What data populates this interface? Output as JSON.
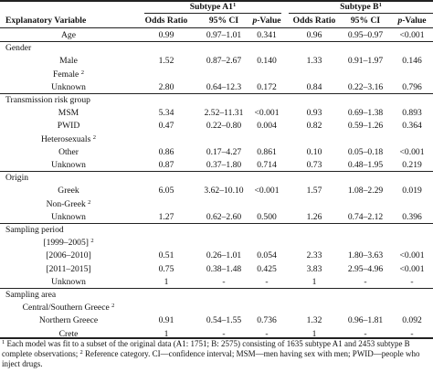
{
  "groups": {
    "a1": "Subtype A1",
    "a1_sup": "1",
    "b": "Subtype B",
    "b_sup": "1"
  },
  "columns": {
    "variable": "Explanatory Variable",
    "or_a1": "Odds Ratio",
    "ci_a1": "95% CI",
    "p_a1_italic": "p",
    "p_a1_rest": "-Value",
    "or_b": "Odds Ratio",
    "ci_b": "95% CI",
    "p_b_italic": "p",
    "p_b_rest": "-Value"
  },
  "rows": [
    {
      "label": "Age",
      "a1_or": "0.99",
      "a1_ci": "0.97–1.01",
      "a1_p": "0.341",
      "b_or": "0.96",
      "b_ci": "0.95–0.97",
      "b_p": "<0.001"
    },
    {
      "section": "Gender"
    },
    {
      "label": "Male",
      "a1_or": "1.52",
      "a1_ci": "0.87–2.67",
      "a1_p": "0.140",
      "b_or": "1.33",
      "b_ci": "0.91–1.97",
      "b_p": "0.146"
    },
    {
      "label": "Female",
      "sup": "2"
    },
    {
      "label": "Unknown",
      "a1_or": "2.80",
      "a1_ci": "0.64–12.3",
      "a1_p": "0.172",
      "b_or": "0.84",
      "b_ci": "0.22–3.16",
      "b_p": "0.796"
    },
    {
      "section": "Transmission risk group"
    },
    {
      "label": "MSM",
      "a1_or": "5.34",
      "a1_ci": "2.52–11.31",
      "a1_p": "<0.001",
      "b_or": "0.93",
      "b_ci": "0.69–1.38",
      "b_p": "0.893"
    },
    {
      "label": "PWID",
      "a1_or": "0.47",
      "a1_ci": "0.22–0.80",
      "a1_p": "0.004",
      "b_or": "0.82",
      "b_ci": "0.59–1.26",
      "b_p": "0.364"
    },
    {
      "label": "Heterosexuals",
      "sup": "2"
    },
    {
      "label": "Other",
      "a1_or": "0.86",
      "a1_ci": "0.17–4.27",
      "a1_p": "0.861",
      "b_or": "0.10",
      "b_ci": "0.05–0.18",
      "b_p": "<0.001"
    },
    {
      "label": "Unknown",
      "a1_or": "0.87",
      "a1_ci": "0.37–1.80",
      "a1_p": "0.714",
      "b_or": "0.73",
      "b_ci": "0.48–1.95",
      "b_p": "0.219"
    },
    {
      "section": "Origin"
    },
    {
      "label": "Greek",
      "a1_or": "6.05",
      "a1_ci": "3.62–10.10",
      "a1_p": "<0.001",
      "b_or": "1.57",
      "b_ci": "1.08–2.29",
      "b_p": "0.019"
    },
    {
      "label": "Non-Greek",
      "sup": "2"
    },
    {
      "label": "Unknown",
      "a1_or": "1.27",
      "a1_ci": "0.62–2.60",
      "a1_p": "0.500",
      "b_or": "1.26",
      "b_ci": "0.74–2.12",
      "b_p": "0.396"
    },
    {
      "section": "Sampling period"
    },
    {
      "label": "[1999–2005]",
      "sup": "2"
    },
    {
      "label": "[2006–2010]",
      "a1_or": "0.51",
      "a1_ci": "0.26–1.01",
      "a1_p": "0.054",
      "b_or": "2.33",
      "b_ci": "1.80–3.63",
      "b_p": "<0.001"
    },
    {
      "label": "[2011–2015]",
      "a1_or": "0.75",
      "a1_ci": "0.38–1.48",
      "a1_p": "0.425",
      "b_or": "3.83",
      "b_ci": "2.95–4.96",
      "b_p": "<0.001"
    },
    {
      "label": "Unknown",
      "a1_or": "1",
      "a1_ci": "-",
      "a1_p": "-",
      "b_or": "1",
      "b_ci": "-",
      "b_p": "-"
    },
    {
      "section": "Sampling area"
    },
    {
      "label": "Central/Southern Greece",
      "sup": "2"
    },
    {
      "label": "Northern Greece",
      "a1_or": "0.91",
      "a1_ci": "0.54–1.55",
      "a1_p": "0.736",
      "b_or": "1.32",
      "b_ci": "0.96–1.81",
      "b_p": "0.092"
    },
    {
      "label": "Crete",
      "a1_or": "1",
      "a1_ci": "-",
      "a1_p": "-",
      "b_or": "1",
      "b_ci": "-",
      "b_p": "-"
    }
  ],
  "footnote": {
    "sup1": "1",
    "text1": " Each model was fit to a subset of the original data (A1: 1751; B: 2575) consisting of 1635 subtype A1 and 2453 subtype B complete observations; ",
    "sup2": "2",
    "text2": " Reference category. CI—confidence interval; MSM—men having sex with men; PWID—people who inject drugs."
  }
}
